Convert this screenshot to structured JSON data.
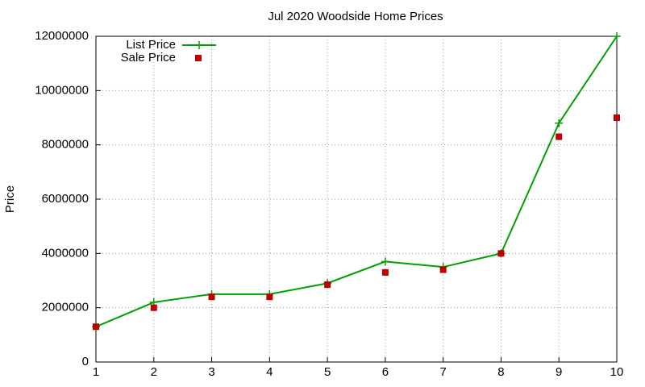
{
  "chart_data": {
    "type": "line",
    "title": "Jul 2020 Woodside Home Prices",
    "y_label": "Price",
    "x": [
      1,
      2,
      3,
      4,
      5,
      6,
      7,
      8,
      9,
      10
    ],
    "series": [
      {
        "name": "List Price",
        "color": "#00a000",
        "style": "linespoints",
        "values": [
          1300000,
          2200000,
          2500000,
          2500000,
          2900000,
          3700000,
          3500000,
          4000000,
          8800000,
          12000000
        ]
      },
      {
        "name": "Sale Price",
        "color": "#c00000",
        "style": "points",
        "values": [
          1300000,
          2000000,
          2400000,
          2400000,
          2850000,
          3300000,
          3400000,
          4000000,
          8300000,
          9000000
        ]
      }
    ],
    "xlim": [
      1,
      10
    ],
    "xticks": [
      1,
      2,
      3,
      4,
      5,
      6,
      7,
      8,
      9,
      10
    ],
    "ylim": [
      0,
      12000000
    ],
    "yticks": [
      0,
      2000000,
      4000000,
      6000000,
      8000000,
      10000000,
      12000000
    ],
    "grid": true,
    "legend": "top-left"
  }
}
